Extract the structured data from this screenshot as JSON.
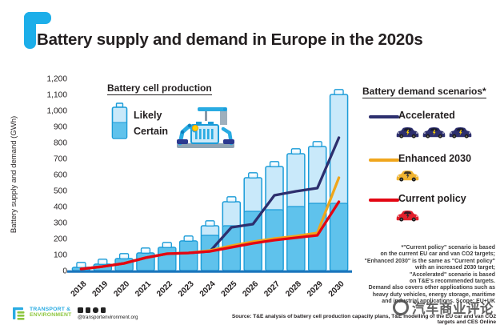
{
  "header": {
    "title": "Battery supply and demand in Europe in the 2020s"
  },
  "production_legend": {
    "title": "Battery cell production",
    "likely_label": "Likely",
    "certain_label": "Certain"
  },
  "demand_legend": {
    "title": "Battery demand scenarios*",
    "items": [
      {
        "label": "Accelerated",
        "color": "#2d2f6e",
        "car_color": "#2d2f6e",
        "bolt_color": "#ffd200",
        "cars": 3
      },
      {
        "label": "Enhanced 2030",
        "color": "#f0a61c",
        "car_color": "#f2b531",
        "bolt_color": "#3a3a3a",
        "cars": 1
      },
      {
        "label": "Current policy",
        "color": "#e30613",
        "car_color": "#e3202c",
        "bolt_color": "#2a2a2a",
        "cars": 1
      }
    ]
  },
  "footnote": "*\"Current policy\" scenario is based\non the current EU car and van CO2 targets;\n\"Enhanced 2030\" is the same as \"Current policy\"\nwith an increased 2030 target;\n\"Accelerated\" scenario is based\non T&E's recommended targets.\nDemand also covers other applications such as\nheavy duty vehicles, energy storage, maritime\nand industrial applications. Scope: EU+UK",
  "watermark": {
    "text": "汽车商业评论"
  },
  "footer": {
    "logo_line1": "TRANSPORT &",
    "logo_line2": "ENVIRONMENT",
    "handle": "@transportenvironment.org",
    "source": "Source: T&E analysis of battery cell production capacity plans, T&E modelling of the EU car and van CO2 targets and CES Online"
  },
  "chart_data": {
    "type": "bar",
    "subtype": "stacked bars (battery-shaped) with overlaid scenario lines",
    "stacked": true,
    "categories": [
      "2018",
      "2019",
      "2020",
      "2021",
      "2022",
      "2023",
      "2024",
      "2025",
      "2026",
      "2027",
      "2028",
      "2029",
      "2030"
    ],
    "series": [
      {
        "name": "Certain",
        "kind": "bar",
        "color": "#5fc2ec",
        "values": [
          20,
          40,
          75,
          110,
          145,
          185,
          220,
          280,
          370,
          380,
          400,
          420,
          420
        ]
      },
      {
        "name": "Likely",
        "kind": "bar",
        "color": "#c9e9fa",
        "values": [
          0,
          0,
          0,
          0,
          0,
          0,
          60,
          150,
          210,
          270,
          330,
          355,
          680
        ]
      },
      {
        "name": "Accelerated",
        "kind": "line",
        "color": "#2d2f6e",
        "values": [
          10,
          25,
          45,
          80,
          105,
          110,
          120,
          270,
          290,
          470,
          495,
          515,
          830
        ]
      },
      {
        "name": "Enhanced 2030",
        "kind": "line",
        "color": "#f0a61c",
        "values": [
          10,
          25,
          45,
          80,
          105,
          110,
          125,
          155,
          180,
          200,
          215,
          235,
          580
        ]
      },
      {
        "name": "Current policy",
        "kind": "line",
        "color": "#e30613",
        "values": [
          10,
          25,
          45,
          80,
          105,
          110,
          120,
          145,
          170,
          190,
          205,
          220,
          430
        ]
      }
    ],
    "title": "Battery supply and demand in Europe in the 2020s",
    "xlabel": "",
    "ylabel": "Battery supply and demand (GWh)",
    "ylim": [
      0,
      1200
    ],
    "ytick_step": 100,
    "grid": false,
    "legend_position": "top",
    "bar_border_color": "#1b9cd8",
    "axis_line_color": "#1a75bc"
  }
}
